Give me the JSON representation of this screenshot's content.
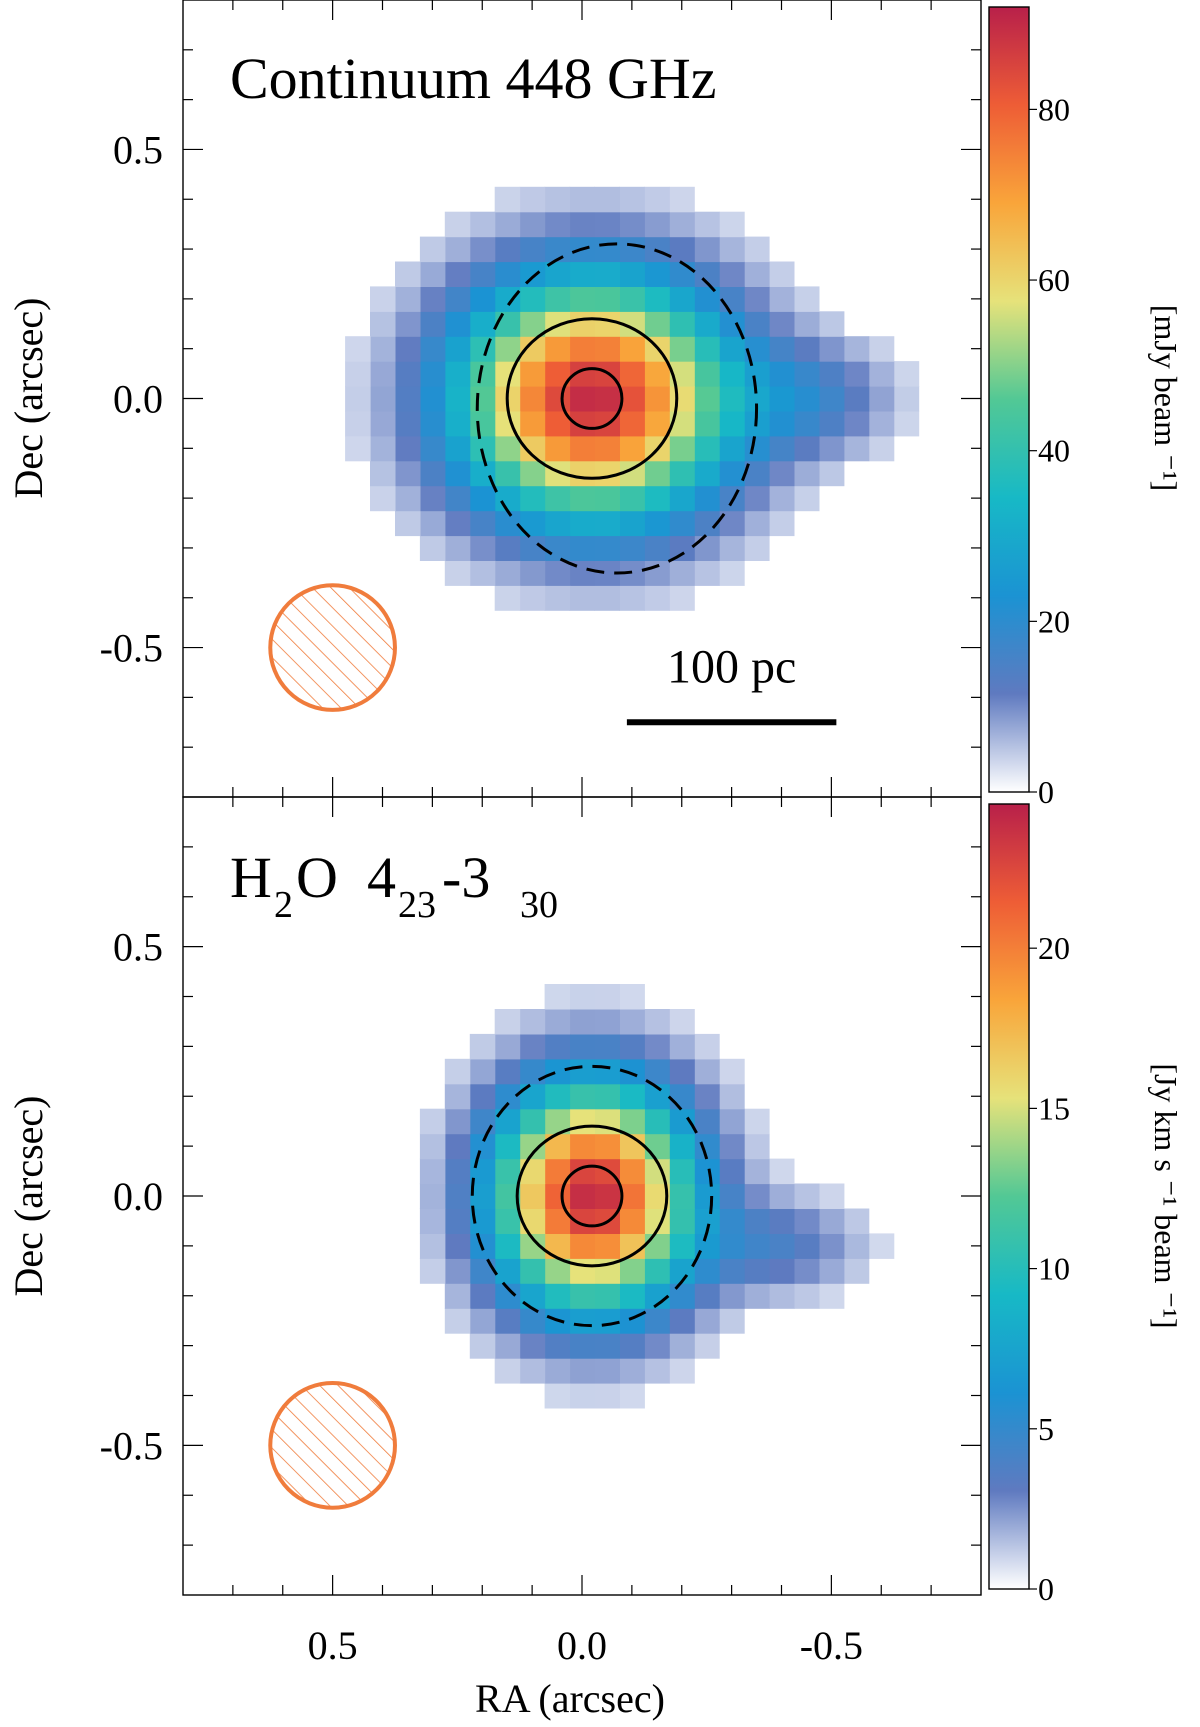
{
  "chart_data": [
    {
      "type": "heatmap",
      "title": "Continuum 448 GHz",
      "title_parts": {
        "main": "Continuum 448 GHz",
        "species": "",
        "sub_species": "",
        "level_upper": "",
        "level_lower": "",
        "separator": ""
      },
      "xlabel": "RA (arcsec)",
      "ylabel": "Dec (arcsec)",
      "xlim": [
        0.8,
        -0.8
      ],
      "ylim": [
        -0.8,
        0.8
      ],
      "xticks": [
        0.5,
        0.0,
        -0.5
      ],
      "yticks": [
        -0.5,
        0.0,
        0.5
      ],
      "ytick_labels": [
        "-0.5",
        "0.0",
        "0.5"
      ],
      "peak": {
        "ra": -0.02,
        "dec": 0.0,
        "value": 90
      },
      "source_size": {
        "sx": 0.19,
        "sy": 0.17
      },
      "extension": {
        "ra": -0.46,
        "dec": 0.0,
        "amplitude": 14,
        "sx": 0.12,
        "sy": 0.08
      },
      "colorbar": {
        "label": "[mJy beam ⁻¹]",
        "min": 0,
        "max": 92,
        "ticks": [
          0,
          20,
          40,
          60,
          80
        ],
        "tick_labels": [
          "0",
          "20",
          "40",
          "60",
          "80"
        ]
      },
      "contours": [
        {
          "style": "dashed",
          "ra_center": -0.07,
          "dec_center": -0.02,
          "ra_halfwidth": 0.28,
          "dec_halfwidth": 0.33
        },
        {
          "style": "solid",
          "ra_center": -0.02,
          "dec_center": 0.0,
          "ra_halfwidth": 0.17,
          "dec_halfwidth": 0.16
        },
        {
          "style": "solid",
          "ra_center": -0.02,
          "dec_center": 0.0,
          "ra_halfwidth": 0.06,
          "dec_halfwidth": 0.06
        }
      ],
      "beam": {
        "ra": 0.5,
        "dec": -0.5,
        "major": 0.25,
        "minor": 0.25,
        "color": "#f07c3c"
      },
      "scale_bar": {
        "label": "100 pc",
        "ra_start": -0.09,
        "ra_end": -0.51,
        "dec": -0.65
      }
    },
    {
      "type": "heatmap",
      "title": "H2O 423-330",
      "title_parts": {
        "main": "",
        "species": "H",
        "sub_species": "2",
        "molecule_tail": "O",
        "level": "4",
        "level_upper": "23",
        "separator": "-3",
        "level_lower": "30"
      },
      "xlabel": "RA (arcsec)",
      "ylabel": "Dec (arcsec)",
      "xlim": [
        0.8,
        -0.8
      ],
      "ylim": [
        -0.8,
        0.8
      ],
      "xticks": [
        0.5,
        0.0,
        -0.5
      ],
      "xtick_labels": [
        "0.5",
        "0.0",
        "-0.5"
      ],
      "yticks": [
        -0.5,
        0.0,
        0.5
      ],
      "ytick_labels": [
        "-0.5",
        "0.0",
        "0.5"
      ],
      "peak": {
        "ra": -0.02,
        "dec": 0.0,
        "value": 24
      },
      "source_size": {
        "sx": 0.14,
        "sy": 0.16
      },
      "extension": {
        "ra": -0.4,
        "dec": -0.1,
        "amplitude": 3.5,
        "sx": 0.12,
        "sy": 0.07
      },
      "colorbar": {
        "label": "[Jy km s ⁻¹ beam ⁻¹]",
        "min": 0,
        "max": 24.5,
        "ticks": [
          0,
          5,
          10,
          15,
          20
        ],
        "tick_labels": [
          "0",
          "5",
          "10",
          "15",
          "20"
        ]
      },
      "contours": [
        {
          "style": "dashed",
          "ra_center": -0.02,
          "dec_center": 0.0,
          "ra_halfwidth": 0.24,
          "dec_halfwidth": 0.26
        },
        {
          "style": "solid",
          "ra_center": -0.02,
          "dec_center": 0.0,
          "ra_halfwidth": 0.15,
          "dec_halfwidth": 0.14
        },
        {
          "style": "solid",
          "ra_center": -0.02,
          "dec_center": 0.0,
          "ra_halfwidth": 0.06,
          "dec_halfwidth": 0.06
        }
      ],
      "beam": {
        "ra": 0.5,
        "dec": -0.5,
        "major": 0.25,
        "minor": 0.25,
        "color": "#f07c3c"
      }
    }
  ],
  "colors": {
    "colormap": [
      "#ffffff",
      "#5f7ac0",
      "#1b93d3",
      "#17b9c6",
      "#52c895",
      "#e6e27a",
      "#f9a53a",
      "#ee5d36",
      "#b8204a"
    ],
    "beam": "#f07c3c",
    "axis": "#000000"
  }
}
